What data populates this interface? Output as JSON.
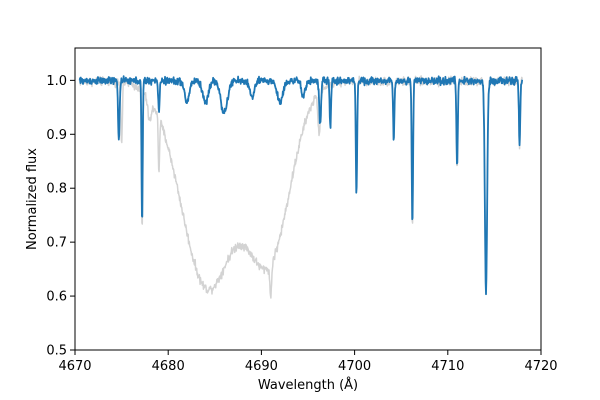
{
  "chart_data": {
    "type": "line",
    "title": "",
    "xlabel": "Wavelength (Å)",
    "ylabel": "Normalized flux",
    "xlim": [
      4670,
      4720
    ],
    "ylim": [
      0.5,
      1.06
    ],
    "xticks": [
      4670,
      4680,
      4690,
      4700,
      4710,
      4720
    ],
    "yticks": [
      0.5,
      0.6,
      0.7,
      0.8,
      0.9,
      1.0
    ],
    "xtick_labels": [
      "4670",
      "4680",
      "4690",
      "4700",
      "4710",
      "4720"
    ],
    "ytick_labels": [
      "0.5",
      "0.6",
      "0.7",
      "0.8",
      "0.9",
      "1.0"
    ],
    "grid": false,
    "x_range": [
      4670.5,
      4718.0
    ],
    "series": [
      {
        "color": "#d3d3d3",
        "continuum": 0.998,
        "noise": 0.012,
        "features": [
          {
            "center": 4675.0,
            "depth": 0.11,
            "sigma": 0.08
          },
          {
            "center": 4677.2,
            "depth": 0.26,
            "sigma": 0.07
          },
          {
            "center": 4678.0,
            "depth": 0.04,
            "sigma": 0.2
          },
          {
            "center": 4679.0,
            "depth": 0.1,
            "sigma": 0.07
          },
          {
            "center": 4684.2,
            "depth": 0.38,
            "sigma": 2.8
          },
          {
            "center": 4690.8,
            "depth": 0.32,
            "sigma": 2.3
          },
          {
            "center": 4691.0,
            "depth": 0.06,
            "sigma": 0.1
          },
          {
            "center": 4696.2,
            "depth": 0.08,
            "sigma": 0.12
          },
          {
            "center": 4700.2,
            "depth": 0.21,
            "sigma": 0.07
          },
          {
            "center": 4704.2,
            "depth": 0.1,
            "sigma": 0.07
          },
          {
            "center": 4706.2,
            "depth": 0.27,
            "sigma": 0.07
          },
          {
            "center": 4711.0,
            "depth": 0.16,
            "sigma": 0.07
          },
          {
            "center": 4714.1,
            "depth": 0.39,
            "sigma": 0.12
          },
          {
            "center": 4717.7,
            "depth": 0.12,
            "sigma": 0.07
          }
        ]
      },
      {
        "color": "#1f77b4",
        "continuum": 0.999,
        "noise": 0.01,
        "features": [
          {
            "center": 4674.7,
            "depth": 0.11,
            "sigma": 0.08
          },
          {
            "center": 4677.2,
            "depth": 0.27,
            "sigma": 0.06
          },
          {
            "center": 4679.0,
            "depth": 0.06,
            "sigma": 0.07
          },
          {
            "center": 4682.0,
            "depth": 0.04,
            "sigma": 0.25
          },
          {
            "center": 4684.0,
            "depth": 0.04,
            "sigma": 0.3
          },
          {
            "center": 4686.0,
            "depth": 0.06,
            "sigma": 0.35
          },
          {
            "center": 4689.0,
            "depth": 0.03,
            "sigma": 0.25
          },
          {
            "center": 4692.0,
            "depth": 0.04,
            "sigma": 0.3
          },
          {
            "center": 4694.5,
            "depth": 0.03,
            "sigma": 0.2
          },
          {
            "center": 4696.3,
            "depth": 0.08,
            "sigma": 0.1
          },
          {
            "center": 4697.4,
            "depth": 0.09,
            "sigma": 0.07
          },
          {
            "center": 4700.2,
            "depth": 0.21,
            "sigma": 0.07
          },
          {
            "center": 4704.2,
            "depth": 0.11,
            "sigma": 0.07
          },
          {
            "center": 4706.2,
            "depth": 0.27,
            "sigma": 0.07
          },
          {
            "center": 4711.0,
            "depth": 0.16,
            "sigma": 0.07
          },
          {
            "center": 4714.1,
            "depth": 0.39,
            "sigma": 0.12
          },
          {
            "center": 4717.7,
            "depth": 0.12,
            "sigma": 0.07
          }
        ]
      }
    ]
  }
}
